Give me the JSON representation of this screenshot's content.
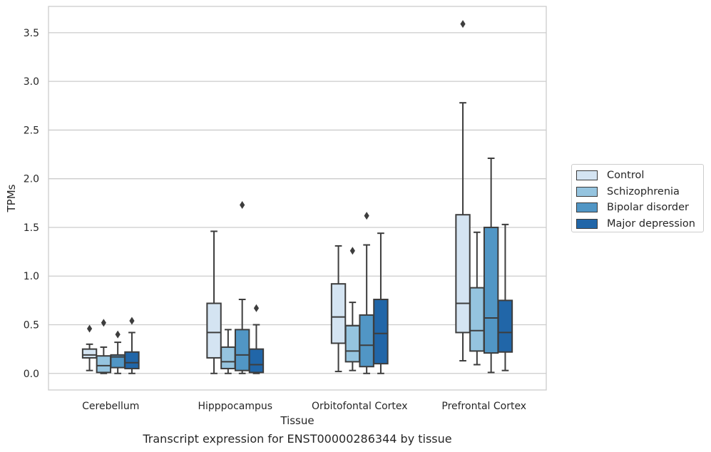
{
  "chart_data": {
    "type": "box",
    "xlabel": "Tissue",
    "ylabel": "TPMs",
    "ylim": [
      -0.17,
      3.77
    ],
    "yticks": [
      "0.0",
      "0.5",
      "1.0",
      "1.5",
      "2.0",
      "2.5",
      "3.0",
      "3.5"
    ],
    "grid": "horizontal",
    "legend_position": "right",
    "categories": [
      "Cerebellum",
      "Hipppocampus",
      "Orbitofontal Cortex",
      "Prefrontal Cortex"
    ],
    "series": [
      {
        "name": "Control",
        "color": "#d4e4f2",
        "boxes": [
          {
            "whislo": 0.03,
            "q1": 0.16,
            "med": 0.19,
            "q3": 0.25,
            "whishi": 0.3,
            "fliers": [
              0.46
            ]
          },
          {
            "whislo": 0.0,
            "q1": 0.16,
            "med": 0.42,
            "q3": 0.72,
            "whishi": 1.46,
            "fliers": []
          },
          {
            "whislo": 0.02,
            "q1": 0.31,
            "med": 0.58,
            "q3": 0.92,
            "whishi": 1.31,
            "fliers": []
          },
          {
            "whislo": 0.13,
            "q1": 0.42,
            "med": 0.72,
            "q3": 1.63,
            "whishi": 2.78,
            "fliers": [
              3.59
            ]
          }
        ]
      },
      {
        "name": "Schizophrenia",
        "color": "#95c4df",
        "boxes": [
          {
            "whislo": 0.0,
            "q1": 0.01,
            "med": 0.08,
            "q3": 0.18,
            "whishi": 0.27,
            "fliers": [
              0.52
            ]
          },
          {
            "whislo": 0.0,
            "q1": 0.05,
            "med": 0.12,
            "q3": 0.27,
            "whishi": 0.45,
            "fliers": []
          },
          {
            "whislo": 0.03,
            "q1": 0.12,
            "med": 0.23,
            "q3": 0.49,
            "whishi": 0.73,
            "fliers": [
              1.26
            ]
          },
          {
            "whislo": 0.09,
            "q1": 0.23,
            "med": 0.44,
            "q3": 0.88,
            "whishi": 1.45,
            "fliers": []
          }
        ]
      },
      {
        "name": "Bipolar disorder",
        "color": "#5196c5",
        "boxes": [
          {
            "whislo": 0.0,
            "q1": 0.06,
            "med": 0.17,
            "q3": 0.19,
            "whishi": 0.32,
            "fliers": [
              0.4
            ]
          },
          {
            "whislo": 0.0,
            "q1": 0.03,
            "med": 0.19,
            "q3": 0.45,
            "whishi": 0.76,
            "fliers": [
              1.73
            ]
          },
          {
            "whislo": 0.0,
            "q1": 0.07,
            "med": 0.29,
            "q3": 0.6,
            "whishi": 1.32,
            "fliers": [
              1.62
            ]
          },
          {
            "whislo": 0.01,
            "q1": 0.21,
            "med": 0.57,
            "q3": 1.5,
            "whishi": 2.21,
            "fliers": []
          }
        ]
      },
      {
        "name": "Major depression",
        "color": "#2166a8",
        "boxes": [
          {
            "whislo": 0.0,
            "q1": 0.05,
            "med": 0.11,
            "q3": 0.22,
            "whishi": 0.42,
            "fliers": [
              0.54
            ]
          },
          {
            "whislo": 0.0,
            "q1": 0.01,
            "med": 0.09,
            "q3": 0.25,
            "whishi": 0.5,
            "fliers": [
              0.67
            ]
          },
          {
            "whislo": 0.0,
            "q1": 0.1,
            "med": 0.41,
            "q3": 0.76,
            "whishi": 1.44,
            "fliers": []
          },
          {
            "whislo": 0.03,
            "q1": 0.22,
            "med": 0.42,
            "q3": 0.75,
            "whishi": 1.53,
            "fliers": []
          }
        ]
      }
    ]
  },
  "caption": "Transcript expression for ENST00000286344 by tissue"
}
